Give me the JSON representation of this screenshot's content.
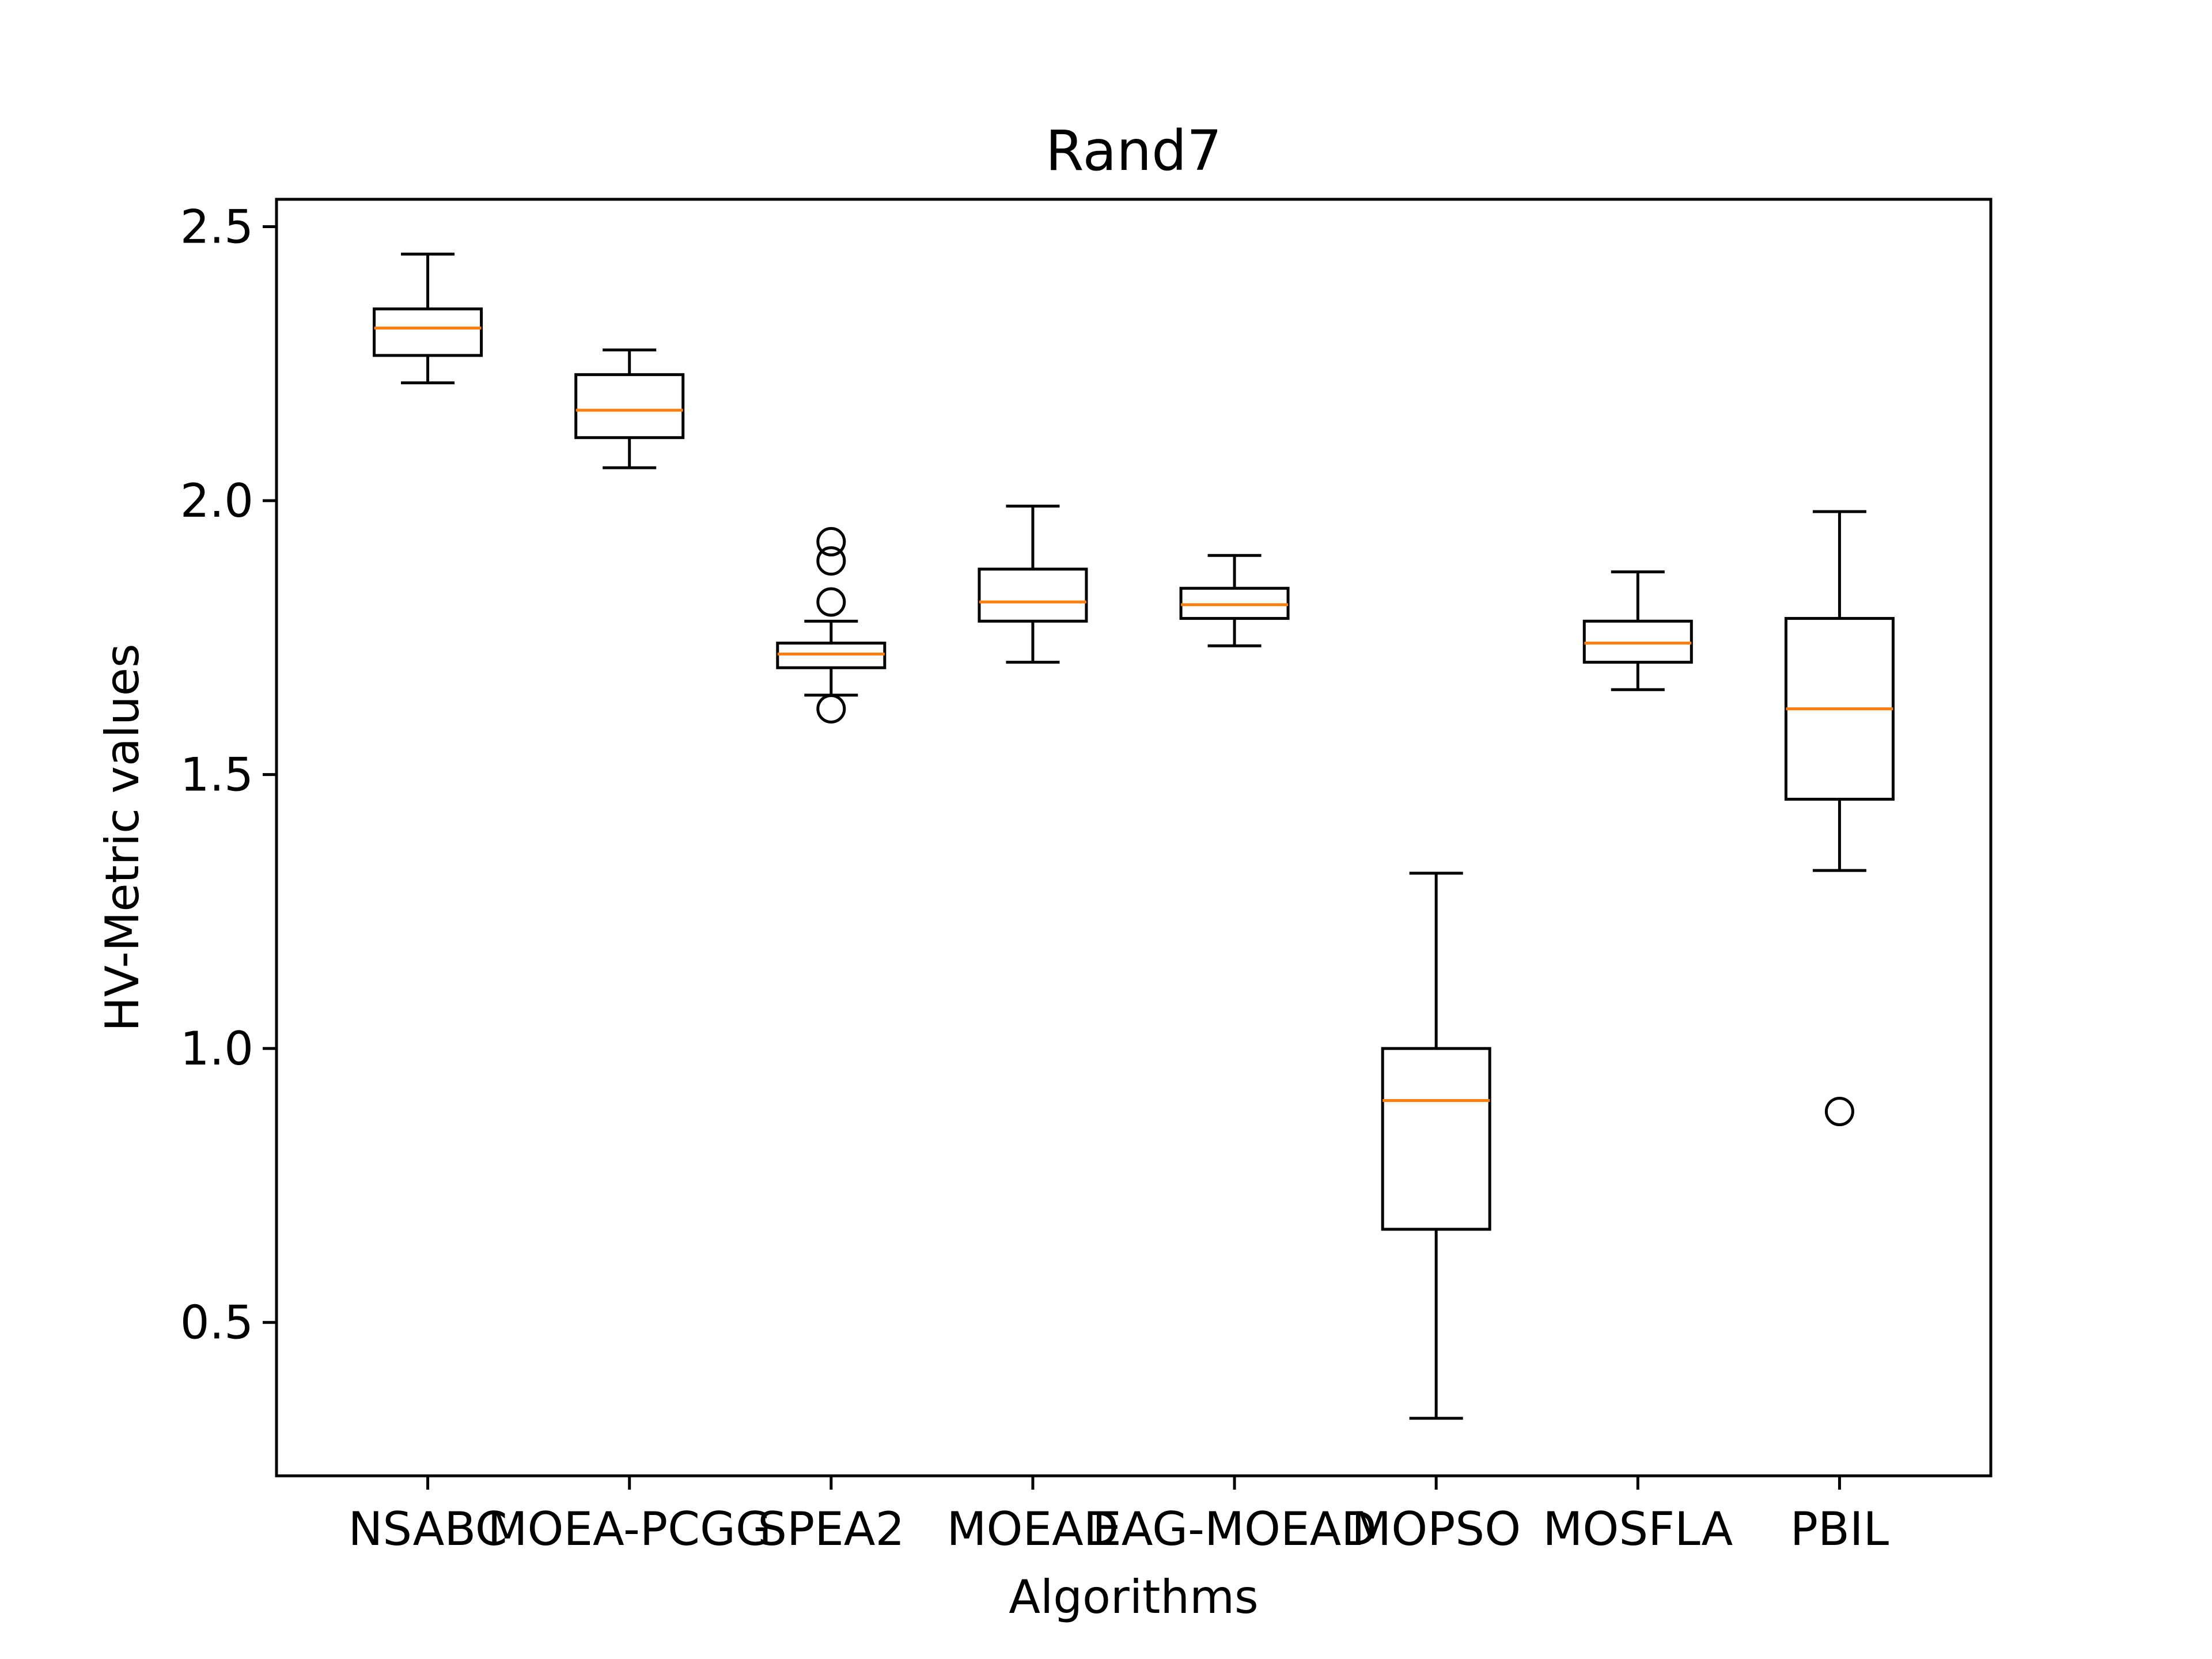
{
  "chart_data": {
    "type": "box",
    "title": "Rand7",
    "xlabel": "Algorithms",
    "ylabel": "HV-Metric values",
    "ylim": [
      0.22,
      2.55
    ],
    "yticks": [
      0.5,
      1.0,
      1.5,
      2.0,
      2.5
    ],
    "ytick_labels": [
      "0.5",
      "1.0",
      "1.5",
      "2.0",
      "2.5"
    ],
    "categories": [
      "NSABC",
      "MOEA-PCGG",
      "SPEA2",
      "MOEAD",
      "EAG-MOEAD",
      "MOPSO",
      "MOSFLA",
      "PBIL"
    ],
    "boxes": [
      {
        "name": "NSABC",
        "whisker_low": 2.215,
        "q1": 2.265,
        "median": 2.315,
        "q3": 2.35,
        "whisker_high": 2.45,
        "outliers": []
      },
      {
        "name": "MOEA-PCGG",
        "whisker_low": 2.06,
        "q1": 2.115,
        "median": 2.165,
        "q3": 2.23,
        "whisker_high": 2.275,
        "outliers": []
      },
      {
        "name": "SPEA2",
        "whisker_low": 1.645,
        "q1": 1.695,
        "median": 1.72,
        "q3": 1.74,
        "whisker_high": 1.78,
        "outliers": [
          1.62,
          1.815,
          1.89,
          1.925
        ]
      },
      {
        "name": "MOEAD",
        "whisker_low": 1.705,
        "q1": 1.78,
        "median": 1.815,
        "q3": 1.875,
        "whisker_high": 1.99,
        "outliers": []
      },
      {
        "name": "EAG-MOEAD",
        "whisker_low": 1.735,
        "q1": 1.785,
        "median": 1.81,
        "q3": 1.84,
        "whisker_high": 1.9,
        "outliers": []
      },
      {
        "name": "MOPSO",
        "whisker_low": 0.325,
        "q1": 0.67,
        "median": 0.905,
        "q3": 1.0,
        "whisker_high": 1.32,
        "outliers": []
      },
      {
        "name": "MOSFLA",
        "whisker_low": 1.655,
        "q1": 1.705,
        "median": 1.74,
        "q3": 1.78,
        "whisker_high": 1.87,
        "outliers": []
      },
      {
        "name": "PBIL",
        "whisker_low": 1.325,
        "q1": 1.455,
        "median": 1.62,
        "q3": 1.785,
        "whisker_high": 1.98,
        "outliers": [
          0.885
        ]
      }
    ],
    "colors": {
      "box": "#000000",
      "median": "#ff7f0e",
      "background": "#ffffff"
    },
    "grid": false,
    "legend": "none"
  }
}
